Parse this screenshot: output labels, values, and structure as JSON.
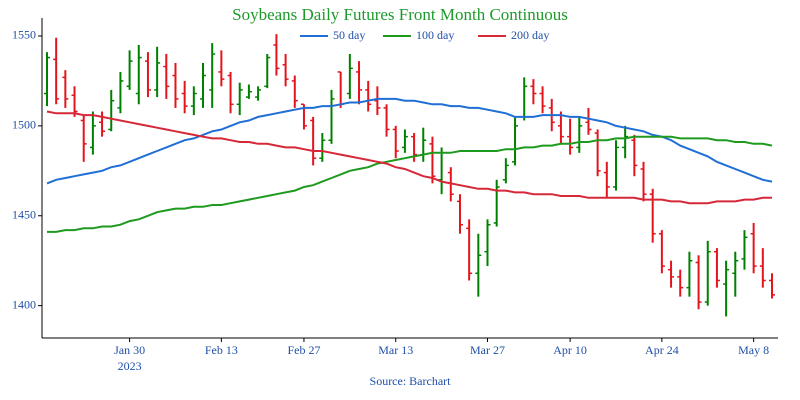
{
  "chart_data": {
    "type": "ohlc",
    "title": "Soybeans Daily Futures Front Month Continuous",
    "source": "Source: Barchart",
    "up_color": "#008000",
    "down_color": "#e4141c",
    "x": [
      "2023-01-17",
      "2023-01-18",
      "2023-01-19",
      "2023-01-20",
      "2023-01-23",
      "2023-01-24",
      "2023-01-25",
      "2023-01-26",
      "2023-01-27",
      "2023-01-30",
      "2023-01-31",
      "2023-02-01",
      "2023-02-02",
      "2023-02-03",
      "2023-02-06",
      "2023-02-07",
      "2023-02-08",
      "2023-02-09",
      "2023-02-10",
      "2023-02-13",
      "2023-02-14",
      "2023-02-15",
      "2023-02-16",
      "2023-02-17",
      "2023-02-21",
      "2023-02-22",
      "2023-02-23",
      "2023-02-24",
      "2023-02-27",
      "2023-02-28",
      "2023-03-01",
      "2023-03-02",
      "2023-03-03",
      "2023-03-06",
      "2023-03-07",
      "2023-03-08",
      "2023-03-09",
      "2023-03-10",
      "2023-03-13",
      "2023-03-14",
      "2023-03-15",
      "2023-03-16",
      "2023-03-17",
      "2023-03-20",
      "2023-03-21",
      "2023-03-22",
      "2023-03-23",
      "2023-03-24",
      "2023-03-27",
      "2023-03-28",
      "2023-03-29",
      "2023-03-30",
      "2023-03-31",
      "2023-04-03",
      "2023-04-04",
      "2023-04-05",
      "2023-04-06",
      "2023-04-10",
      "2023-04-11",
      "2023-04-12",
      "2023-04-13",
      "2023-04-14",
      "2023-04-17",
      "2023-04-18",
      "2023-04-19",
      "2023-04-20",
      "2023-04-21",
      "2023-04-24",
      "2023-04-25",
      "2023-04-26",
      "2023-04-27",
      "2023-04-28",
      "2023-05-01",
      "2023-05-02",
      "2023-05-03",
      "2023-05-04",
      "2023-05-05",
      "2023-05-08",
      "2023-05-09",
      "2023-05-10"
    ],
    "open": [
      1518,
      1537,
      1527,
      1517,
      1503,
      1488,
      1502,
      1498,
      1510,
      1522,
      1518,
      1536,
      1520,
      1533,
      1528,
      1518,
      1511,
      1515,
      1520,
      1530,
      1528,
      1512,
      1516,
      1516,
      1522,
      1545,
      1534,
      1525,
      1512,
      1503,
      1482,
      1492,
      1530,
      1518,
      1530,
      1520,
      1514,
      1510,
      1498,
      1488,
      1494,
      1484,
      1490,
      1470,
      1474,
      1458,
      1443,
      1418,
      1430,
      1446,
      1470,
      1480,
      1505,
      1522,
      1518,
      1510,
      1500,
      1494,
      1488,
      1502,
      1496,
      1474,
      1466,
      1488,
      1492,
      1476,
      1462,
      1440,
      1420,
      1416,
      1410,
      1424,
      1402,
      1430,
      1412,
      1418,
      1426,
      1440,
      1422,
      1414
    ],
    "high": [
      1541,
      1549,
      1531,
      1522,
      1506,
      1508,
      1508,
      1520,
      1530,
      1542,
      1545,
      1541,
      1544,
      1540,
      1535,
      1525,
      1522,
      1535,
      1546,
      1542,
      1530,
      1524,
      1523,
      1522,
      1540,
      1551,
      1540,
      1528,
      1512,
      1505,
      1496,
      1520,
      1530,
      1540,
      1536,
      1525,
      1522,
      1512,
      1500,
      1498,
      1496,
      1499,
      1494,
      1488,
      1477,
      1462,
      1448,
      1440,
      1448,
      1470,
      1482,
      1505,
      1527,
      1526,
      1522,
      1515,
      1508,
      1504,
      1505,
      1510,
      1498,
      1480,
      1492,
      1500,
      1495,
      1480,
      1465,
      1442,
      1425,
      1420,
      1430,
      1428,
      1436,
      1432,
      1425,
      1430,
      1442,
      1446,
      1432,
      1418
    ],
    "low": [
      1511,
      1512,
      1510,
      1505,
      1480,
      1484,
      1494,
      1497,
      1507,
      1520,
      1512,
      1516,
      1516,
      1515,
      1510,
      1507,
      1506,
      1510,
      1510,
      1522,
      1507,
      1506,
      1515,
      1514,
      1521,
      1528,
      1522,
      1510,
      1498,
      1478,
      1480,
      1490,
      1510,
      1515,
      1512,
      1508,
      1506,
      1494,
      1482,
      1485,
      1480,
      1480,
      1468,
      1462,
      1458,
      1440,
      1414,
      1405,
      1422,
      1444,
      1468,
      1478,
      1503,
      1512,
      1507,
      1497,
      1490,
      1484,
      1485,
      1495,
      1472,
      1460,
      1464,
      1482,
      1472,
      1458,
      1435,
      1418,
      1410,
      1405,
      1405,
      1398,
      1400,
      1410,
      1394,
      1405,
      1420,
      1418,
      1410,
      1404
    ],
    "close": [
      1538,
      1515,
      1515,
      1508,
      1490,
      1500,
      1497,
      1514,
      1525,
      1536,
      1538,
      1520,
      1535,
      1522,
      1515,
      1511,
      1518,
      1528,
      1540,
      1526,
      1512,
      1520,
      1519,
      1520,
      1538,
      1532,
      1526,
      1514,
      1500,
      1482,
      1492,
      1515,
      1512,
      1532,
      1520,
      1512,
      1510,
      1498,
      1486,
      1494,
      1484,
      1492,
      1472,
      1485,
      1462,
      1445,
      1418,
      1428,
      1445,
      1466,
      1478,
      1500,
      1522,
      1518,
      1511,
      1502,
      1494,
      1488,
      1500,
      1498,
      1475,
      1466,
      1488,
      1494,
      1478,
      1462,
      1440,
      1422,
      1416,
      1410,
      1425,
      1402,
      1430,
      1414,
      1420,
      1425,
      1438,
      1422,
      1414,
      1406
    ],
    "series": [
      {
        "name": "50 day",
        "color": "#1f6fd6",
        "values": [
          1468,
          1470,
          1471,
          1472,
          1473,
          1474,
          1475,
          1477,
          1478,
          1480,
          1482,
          1484,
          1486,
          1488,
          1490,
          1492,
          1493,
          1495,
          1497,
          1498,
          1500,
          1502,
          1503,
          1505,
          1506,
          1507,
          1508,
          1509,
          1510,
          1510,
          1511,
          1511,
          1512,
          1513,
          1513,
          1514,
          1515,
          1515,
          1515,
          1514,
          1514,
          1513,
          1512,
          1512,
          1511,
          1511,
          1510,
          1510,
          1509,
          1508,
          1507,
          1505,
          1505,
          1505,
          1506,
          1506,
          1506,
          1505,
          1505,
          1504,
          1503,
          1502,
          1500,
          1499,
          1498,
          1497,
          1495,
          1494,
          1492,
          1489,
          1487,
          1485,
          1483,
          1480,
          1478,
          1476,
          1474,
          1472,
          1470,
          1469
        ]
      },
      {
        "name": "100 day",
        "color": "#1e9a1e",
        "values": [
          1441,
          1441,
          1442,
          1442,
          1443,
          1443,
          1444,
          1444,
          1445,
          1447,
          1448,
          1450,
          1452,
          1453,
          1454,
          1454,
          1455,
          1455,
          1456,
          1456,
          1457,
          1458,
          1459,
          1460,
          1461,
          1462,
          1463,
          1464,
          1466,
          1467,
          1469,
          1471,
          1473,
          1475,
          1476,
          1477,
          1479,
          1480,
          1481,
          1482,
          1483,
          1484,
          1485,
          1485,
          1485,
          1486,
          1486,
          1486,
          1486,
          1486,
          1487,
          1487,
          1488,
          1488,
          1489,
          1489,
          1490,
          1490,
          1491,
          1491,
          1492,
          1492,
          1493,
          1493,
          1494,
          1494,
          1494,
          1494,
          1494,
          1493,
          1493,
          1493,
          1493,
          1492,
          1492,
          1491,
          1491,
          1490,
          1490,
          1489
        ]
      },
      {
        "name": "200 day",
        "color": "#d62839",
        "values": [
          1508,
          1507,
          1507,
          1507,
          1506,
          1506,
          1505,
          1504,
          1503,
          1502,
          1501,
          1500,
          1499,
          1498,
          1497,
          1496,
          1495,
          1494,
          1493,
          1493,
          1492,
          1491,
          1491,
          1490,
          1490,
          1489,
          1488,
          1488,
          1487,
          1486,
          1486,
          1485,
          1484,
          1483,
          1482,
          1481,
          1480,
          1479,
          1477,
          1476,
          1474,
          1472,
          1471,
          1469,
          1468,
          1467,
          1466,
          1465,
          1465,
          1464,
          1464,
          1463,
          1463,
          1462,
          1462,
          1462,
          1461,
          1461,
          1461,
          1460,
          1460,
          1460,
          1460,
          1460,
          1460,
          1459,
          1459,
          1459,
          1458,
          1458,
          1457,
          1457,
          1457,
          1458,
          1458,
          1458,
          1459,
          1459,
          1460,
          1460
        ]
      }
    ],
    "ylim": [
      1382,
      1560
    ],
    "yticks": [
      1400,
      1450,
      1500,
      1550
    ],
    "xticks": [
      {
        "value": "2023-01-30",
        "label": "Jan 30\n2023"
      },
      {
        "value": "2023-02-13",
        "label": "Feb 13"
      },
      {
        "value": "2023-02-27",
        "label": "Feb 27"
      },
      {
        "value": "2023-03-13",
        "label": "Mar 13"
      },
      {
        "value": "2023-03-27",
        "label": "Mar 27"
      },
      {
        "value": "2023-04-10",
        "label": "Apr 10"
      },
      {
        "value": "2023-04-24",
        "label": "Apr 24"
      },
      {
        "value": "2023-05-08",
        "label": "May 8"
      }
    ],
    "legend": "top"
  }
}
